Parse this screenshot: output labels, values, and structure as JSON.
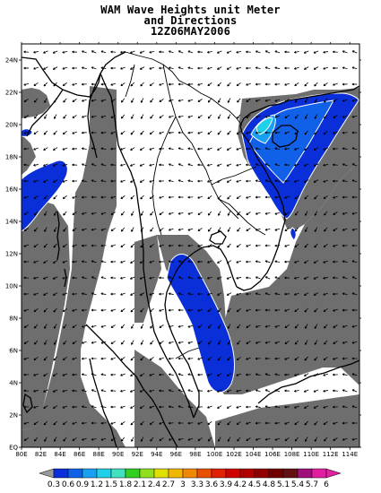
{
  "title": {
    "line1": "WAM Wave Heights unit Meter",
    "line2": "and Directions",
    "line3": "12Z06MAY2006"
  },
  "map": {
    "lon_range": [
      80,
      115
    ],
    "lat_range": [
      0,
      25
    ],
    "x_ticks": [
      "80E",
      "82E",
      "84E",
      "86E",
      "88E",
      "90E",
      "92E",
      "94E",
      "96E",
      "98E",
      "100E",
      "102E",
      "104E",
      "106E",
      "108E",
      "110E",
      "112E",
      "114E"
    ],
    "y_ticks": [
      "EQ",
      "2N",
      "4N",
      "6N",
      "8N",
      "10N",
      "12N",
      "14N",
      "16N",
      "18N",
      "20N",
      "22N",
      "24N"
    ],
    "land_color": "#6e6e6e",
    "ocean_color": "#ffffff",
    "coast_color": "#000000"
  },
  "colorbar": {
    "labels": [
      "0.3",
      "0.6",
      "0.9",
      "1.2",
      "1.5",
      "1.8",
      "2.1",
      "2.4",
      "2.7",
      "3",
      "3.3",
      "3.6",
      "3.9",
      "4.2",
      "4.5",
      "4.8",
      "5.1",
      "5.4",
      "5.7",
      "6"
    ],
    "colors": [
      "#9b9b9b",
      "#0a2fd8",
      "#1060e8",
      "#1aa0f0",
      "#20d0e8",
      "#40e0c0",
      "#30d020",
      "#90e020",
      "#e0e000",
      "#f0b800",
      "#f08800",
      "#e85000",
      "#e02000",
      "#d00000",
      "#b00000",
      "#900000",
      "#700000",
      "#601010",
      "#a0107a",
      "#e020a0",
      "#e020a0"
    ]
  }
}
